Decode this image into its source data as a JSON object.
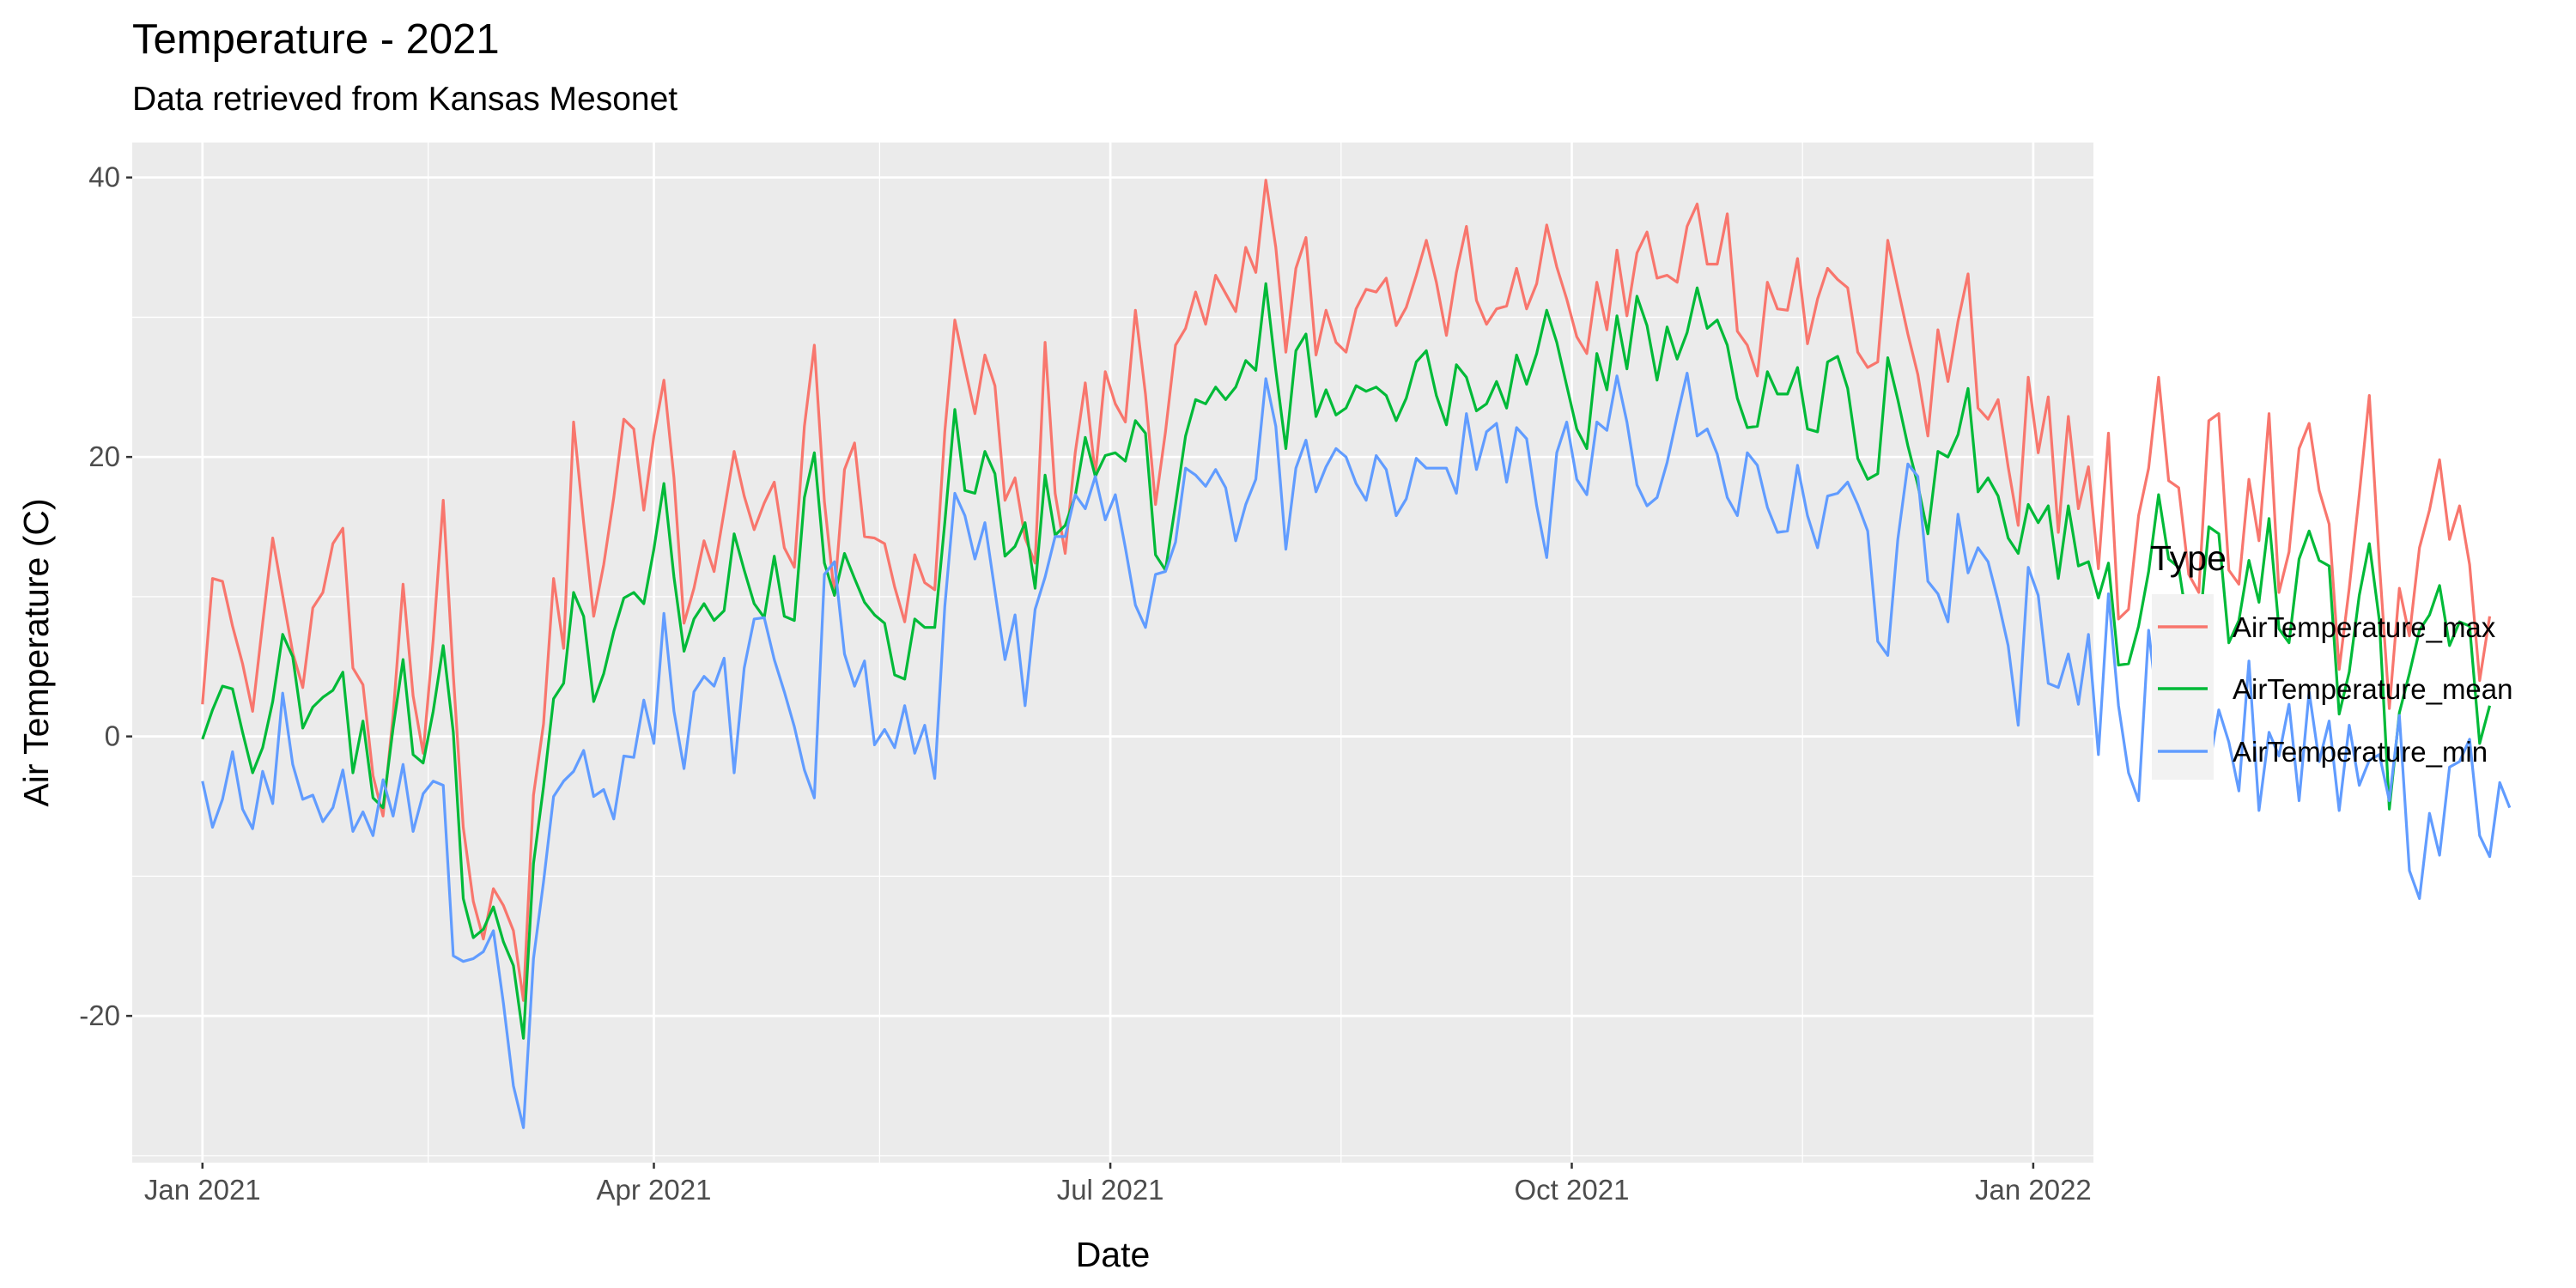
{
  "chart_data": {
    "type": "line",
    "title": "Temperature -  2021",
    "subtitle": "Data retrieved from Kansas Mesonet",
    "xlabel": "Date",
    "ylabel": "Air Temperature (C)",
    "xlim": [
      "2020-12-18",
      "2022-01-13"
    ],
    "ylim": [
      -30.5,
      42.5
    ],
    "x_ticks": [
      {
        "date": "2021-01-01",
        "label": "Jan 2021"
      },
      {
        "date": "2021-04-01",
        "label": "Apr 2021"
      },
      {
        "date": "2021-07-01",
        "label": "Jul 2021"
      },
      {
        "date": "2021-10-01",
        "label": "Oct 2021"
      },
      {
        "date": "2022-01-01",
        "label": "Jan 2022"
      }
    ],
    "x_minor_ticks": [
      "2021-02-15",
      "2021-05-16",
      "2021-08-16",
      "2021-11-16"
    ],
    "y_ticks": [
      -20,
      0,
      20,
      40
    ],
    "y_tick_labels": [
      "-20",
      "0",
      "20",
      "40"
    ],
    "y_minor_ticks": [
      -30,
      -10,
      10,
      30
    ],
    "panel_background": "#ebebeb",
    "grid_color": "#ffffff",
    "grid": true,
    "legend": {
      "title": "Type",
      "position": "right",
      "background": "#f2f2f2"
    },
    "sampling": {
      "start": "2021-01-01",
      "step_days": 2
    },
    "series": [
      {
        "name": "AirTemperature_max",
        "color": "#f8766d",
        "values": [
          2.3,
          11.3,
          11.1,
          7.9,
          5.2,
          1.8,
          8.1,
          14.2,
          10.1,
          6.0,
          3.5,
          9.2,
          10.3,
          13.8,
          14.9,
          4.9,
          3.7,
          -2.8,
          -5.7,
          1.5,
          10.9,
          2.9,
          -1.2,
          6.9,
          16.9,
          4.4,
          -6.5,
          -11.8,
          -14.5,
          -10.9,
          -12.1,
          -13.9,
          -18.9,
          -4.2,
          0.9,
          11.3,
          6.3,
          22.5,
          15.3,
          8.6,
          12.3,
          17.1,
          22.7,
          22.0,
          16.2,
          21.5,
          25.5,
          18.5,
          8.1,
          10.6,
          14.0,
          11.8,
          16.1,
          20.4,
          17.2,
          14.8,
          16.7,
          18.2,
          13.5,
          12.1,
          22.2,
          28.0,
          16.8,
          10.1,
          19.1,
          21.0,
          14.3,
          14.2,
          13.8,
          10.7,
          8.2,
          13.0,
          11.0,
          10.5,
          21.8,
          29.8,
          26.4,
          23.1,
          27.3,
          25.1,
          16.9,
          18.5,
          14.2,
          12.4,
          28.2,
          17.4,
          13.1,
          20.3,
          25.3,
          18.7,
          26.1,
          23.8,
          22.5,
          30.5,
          24.5,
          16.6,
          21.8,
          28.0,
          29.2,
          31.8,
          29.5,
          33.0,
          31.7,
          30.4,
          35.0,
          33.2,
          39.8,
          35.0,
          27.5,
          33.5,
          35.7,
          27.3,
          30.5,
          28.2,
          27.5,
          30.6,
          32.0,
          31.8,
          32.8,
          29.4,
          30.7,
          33.0,
          35.5,
          32.5,
          28.7,
          33.2,
          36.5,
          31.2,
          29.5,
          30.6,
          30.8,
          33.5,
          30.6,
          32.4,
          36.6,
          33.6,
          31.3,
          28.6,
          27.4,
          32.5,
          29.1,
          34.8,
          30.1,
          34.6,
          36.1,
          32.8,
          33.0,
          32.5,
          36.5,
          38.1,
          33.8,
          33.8,
          37.4,
          29.0,
          28.0,
          25.8,
          32.5,
          30.6,
          30.5,
          34.2,
          28.1,
          31.3,
          33.5,
          32.7,
          32.1,
          27.5,
          26.4,
          26.8,
          35.5,
          32.1,
          28.8,
          25.9,
          21.5,
          29.1,
          25.4,
          29.7,
          33.1,
          23.5,
          22.7,
          24.1,
          19.3,
          15.1,
          25.7,
          20.3,
          24.3,
          14.6,
          22.9,
          16.3,
          19.3,
          12.0,
          21.7,
          8.4,
          9.1,
          15.8,
          19.2,
          25.7,
          18.3,
          17.8,
          11.6,
          10.3,
          22.6,
          23.1,
          11.9,
          10.9,
          18.4,
          14.0,
          23.1,
          10.3,
          13.2,
          20.6,
          22.4,
          17.6,
          15.2,
          4.8,
          10.6,
          17.3,
          24.4,
          12.4,
          2.0,
          10.6,
          7.2,
          13.5,
          16.2,
          19.8,
          14.1,
          16.5,
          12.3,
          4.0,
          8.6
        ]
      },
      {
        "name": "AirTemperature_mean",
        "color": "#00ba38",
        "values": [
          -0.2,
          1.9,
          3.6,
          3.4,
          0.3,
          -2.6,
          -0.8,
          2.5,
          7.3,
          5.7,
          0.6,
          2.1,
          2.8,
          3.3,
          4.6,
          -2.6,
          1.1,
          -4.4,
          -5.1,
          0.6,
          5.5,
          -1.3,
          -1.9,
          1.8,
          6.5,
          0.3,
          -11.6,
          -14.4,
          -13.8,
          -12.2,
          -14.7,
          -16.4,
          -21.6,
          -9.1,
          -3.6,
          2.7,
          3.8,
          10.3,
          8.6,
          2.5,
          4.5,
          7.5,
          9.9,
          10.3,
          9.5,
          13.4,
          18.1,
          11.4,
          6.1,
          8.4,
          9.5,
          8.3,
          9.0,
          14.5,
          11.9,
          9.5,
          8.5,
          12.9,
          8.6,
          8.3,
          17.1,
          20.3,
          12.4,
          10.1,
          13.1,
          11.3,
          9.6,
          8.7,
          8.1,
          4.4,
          4.1,
          8.4,
          7.8,
          7.8,
          15.3,
          23.4,
          17.6,
          17.4,
          20.4,
          18.8,
          12.9,
          13.6,
          15.3,
          10.6,
          18.7,
          14.4,
          15.1,
          17.2,
          21.4,
          18.6,
          20.1,
          20.3,
          19.7,
          22.6,
          21.7,
          13.0,
          11.9,
          16.6,
          21.5,
          24.1,
          23.8,
          25.0,
          24.1,
          25.0,
          26.9,
          26.2,
          32.4,
          26.2,
          20.6,
          27.6,
          28.8,
          22.9,
          24.8,
          23.0,
          23.5,
          25.1,
          24.7,
          25.0,
          24.4,
          22.6,
          24.2,
          26.8,
          27.6,
          24.4,
          22.3,
          26.6,
          25.7,
          23.3,
          23.8,
          25.4,
          23.5,
          27.3,
          25.2,
          27.4,
          30.5,
          28.2,
          25.1,
          22.0,
          20.6,
          27.4,
          24.8,
          30.1,
          26.3,
          31.5,
          29.4,
          25.5,
          29.3,
          27.0,
          28.9,
          32.1,
          29.2,
          29.8,
          28.0,
          24.2,
          22.1,
          22.2,
          26.1,
          24.5,
          24.5,
          26.4,
          22.0,
          21.8,
          26.8,
          27.2,
          24.9,
          19.9,
          18.4,
          18.8,
          27.1,
          24.1,
          20.8,
          18.0,
          14.5,
          20.4,
          20.0,
          21.6,
          24.9,
          17.5,
          18.5,
          17.2,
          14.2,
          13.1,
          16.6,
          15.3,
          16.5,
          11.3,
          16.5,
          12.2,
          12.5,
          9.9,
          12.4,
          5.1,
          5.2,
          7.9,
          11.8,
          17.3,
          12.7,
          12.1,
          7.4,
          7.2,
          15.0,
          14.5,
          6.7,
          8.3,
          12.6,
          9.6,
          15.6,
          7.7,
          6.7,
          12.7,
          14.7,
          12.6,
          12.2,
          1.6,
          4.6,
          10.1,
          13.8,
          8.3,
          -5.2,
          1.7,
          4.5,
          7.6,
          8.7,
          10.8,
          6.5,
          8.2,
          7.9,
          -0.5,
          2.2
        ]
      },
      {
        "name": "AirTemperature_min",
        "color": "#619cff",
        "values": [
          -3.2,
          -6.5,
          -4.5,
          -1.1,
          -5.2,
          -6.6,
          -2.5,
          -4.8,
          3.1,
          -2.0,
          -4.5,
          -4.2,
          -6.1,
          -5.1,
          -2.4,
          -6.8,
          -5.4,
          -7.1,
          -3.1,
          -5.7,
          -2.0,
          -6.8,
          -4.1,
          -3.2,
          -3.5,
          -15.7,
          -16.1,
          -15.9,
          -15.4,
          -13.9,
          -19.1,
          -25.0,
          -28.0,
          -15.9,
          -10.4,
          -4.3,
          -3.2,
          -2.5,
          -1.0,
          -4.3,
          -3.8,
          -5.9,
          -1.4,
          -1.5,
          2.6,
          -0.5,
          8.8,
          1.8,
          -2.3,
          3.2,
          4.3,
          3.6,
          5.6,
          -2.6,
          4.9,
          8.4,
          8.5,
          5.5,
          3.2,
          0.7,
          -2.4,
          -4.4,
          11.6,
          12.5,
          5.9,
          3.6,
          5.4,
          -0.6,
          0.5,
          -0.8,
          2.2,
          -1.2,
          0.8,
          -3.0,
          9.3,
          17.4,
          15.8,
          12.7,
          15.3,
          10.4,
          5.5,
          8.7,
          2.2,
          9.1,
          11.4,
          14.3,
          14.3,
          17.3,
          16.3,
          18.6,
          15.5,
          17.3,
          13.5,
          9.4,
          7.8,
          11.6,
          11.8,
          13.9,
          19.2,
          18.7,
          17.9,
          19.1,
          17.8,
          14.0,
          16.6,
          18.4,
          25.6,
          22.2,
          13.4,
          19.2,
          21.2,
          17.5,
          19.3,
          20.6,
          20.0,
          18.1,
          16.9,
          20.1,
          19.1,
          15.8,
          17.0,
          19.9,
          19.2,
          19.2,
          19.2,
          17.4,
          23.1,
          19.1,
          21.8,
          22.4,
          18.2,
          22.1,
          21.3,
          16.5,
          12.8,
          20.3,
          22.5,
          18.4,
          17.3,
          22.5,
          21.9,
          25.8,
          22.5,
          18.0,
          16.5,
          17.1,
          19.6,
          22.9,
          26.0,
          21.5,
          22.0,
          20.2,
          17.1,
          15.8,
          20.3,
          19.4,
          16.4,
          14.6,
          14.7,
          19.4,
          15.8,
          13.5,
          17.2,
          17.4,
          18.2,
          16.6,
          14.7,
          6.8,
          5.8,
          14.1,
          19.5,
          18.6,
          11.1,
          10.2,
          8.2,
          15.9,
          11.7,
          13.5,
          12.5,
          9.7,
          6.5,
          0.8,
          12.1,
          10.1,
          3.8,
          3.5,
          5.9,
          2.3,
          7.3,
          -1.3,
          10.2,
          2.2,
          -2.6,
          -4.6,
          7.6,
          1.4,
          0.8,
          0.3,
          -1.7,
          -0.3,
          -2.3,
          1.9,
          -0.4,
          -3.9,
          5.4,
          -5.3,
          0.3,
          -1.4,
          2.3,
          -4.6,
          3.2,
          -1.8,
          1.1,
          -5.3,
          0.8,
          -3.5,
          -1.7,
          -1.3,
          -4.6,
          1.5,
          -9.6,
          -11.6,
          -5.5,
          -8.5,
          -2.2,
          -1.8,
          -0.2,
          -7.1,
          -8.6,
          -3.3,
          -5.1
        ]
      }
    ]
  }
}
